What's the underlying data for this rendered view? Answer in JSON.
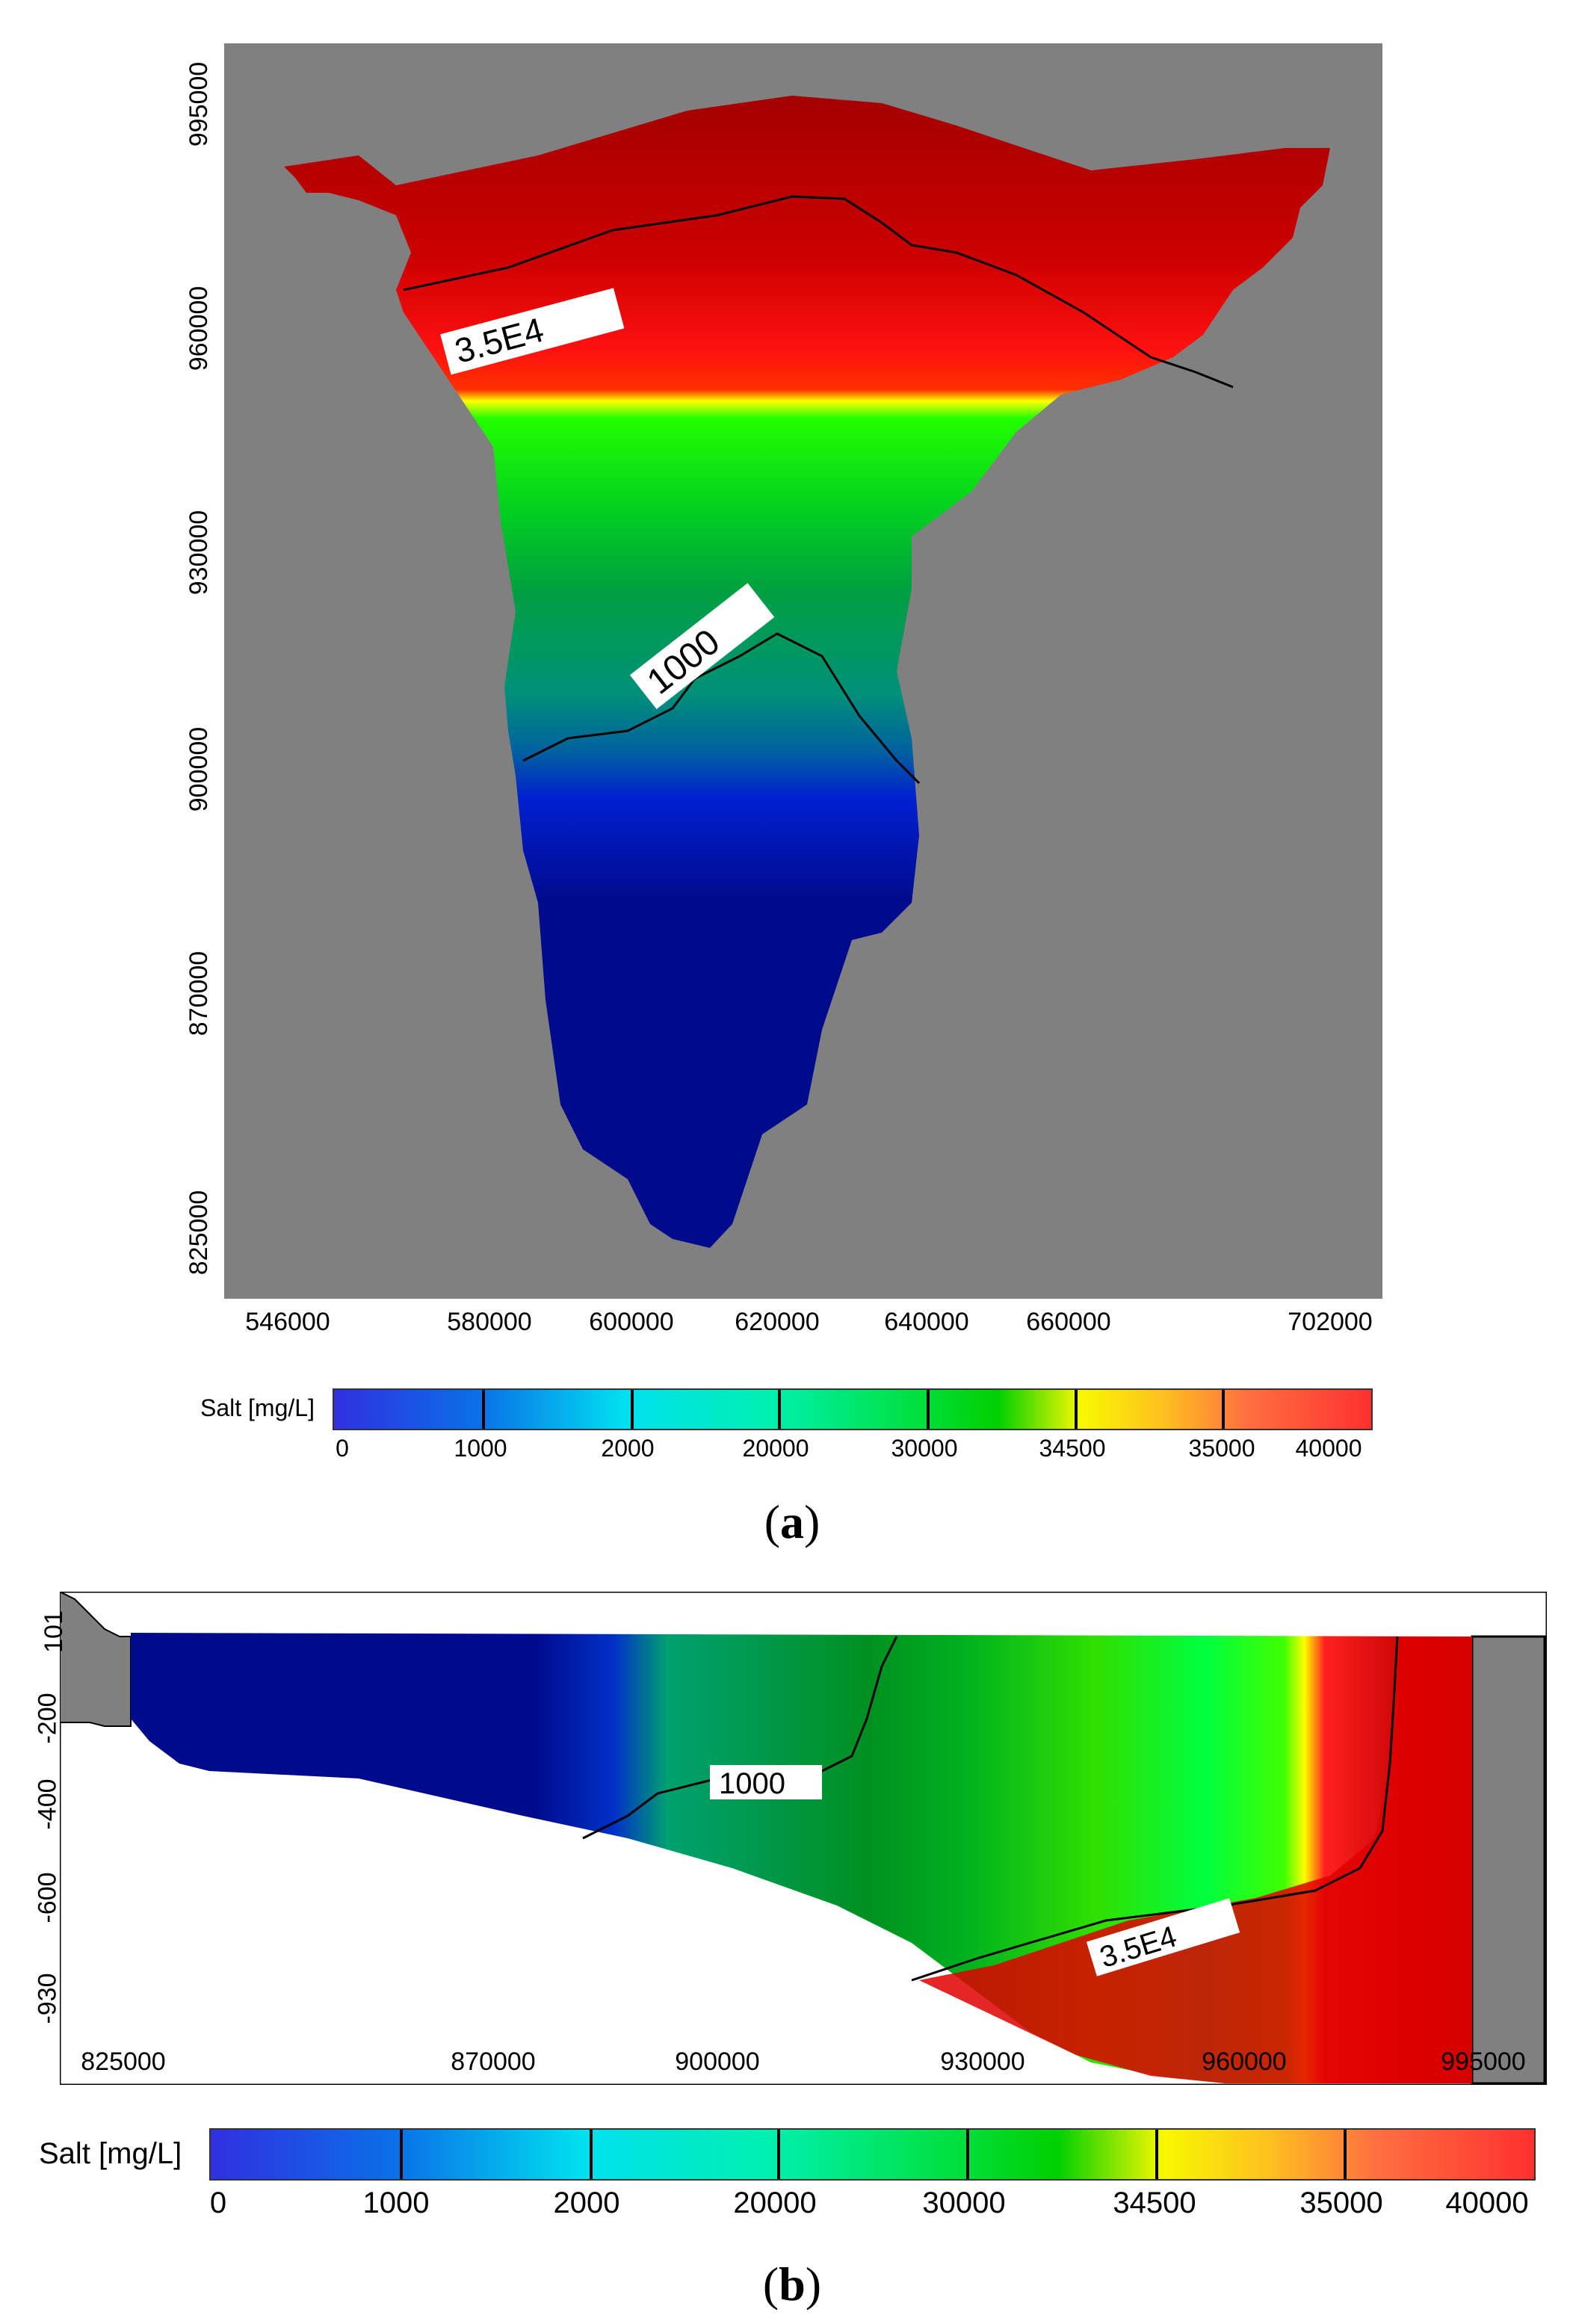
{
  "figure": {
    "panel_a_label": "a",
    "panel_b_label": "b"
  },
  "colors": {
    "background_gray": "#808080",
    "deep_blue": "#000a8c",
    "green": "#00b030",
    "bright_green": "#22ff00",
    "yellow": "#ffff00",
    "red": "#ff1010",
    "dark_red": "#a40000"
  },
  "chart_data": [
    {
      "type": "heatmap",
      "panel": "a",
      "x": {
        "ticks": [
          "546000",
          "580000",
          "600000",
          "620000",
          "640000",
          "660000",
          "702000"
        ],
        "range": [
          546000,
          702000
        ]
      },
      "y": {
        "ticks": [
          "995000",
          "960000",
          "930000",
          "900000",
          "870000",
          "825000"
        ],
        "range": [
          820000,
          1005000
        ]
      },
      "contours": [
        {
          "label": "3.5E4",
          "value": 35000
        },
        {
          "label": "1000",
          "value": 1000
        }
      ],
      "legend": {
        "title": "Salt [mg/L]",
        "breaks": [
          "0",
          "1000",
          "2000",
          "20000",
          "30000",
          "34500",
          "35000",
          "40000"
        ]
      }
    },
    {
      "type": "heatmap",
      "panel": "b",
      "x": {
        "ticks": [
          "825000",
          "870000",
          "900000",
          "930000",
          "960000",
          "995000"
        ],
        "range": [
          825000,
          995000
        ]
      },
      "y": {
        "ticks": [
          "101",
          "-200",
          "-400",
          "-600",
          "-930"
        ],
        "range": [
          -930,
          101
        ]
      },
      "contours": [
        {
          "label": "1000",
          "value": 1000
        },
        {
          "label": "3.5E4",
          "value": 35000
        }
      ],
      "legend": {
        "title": "Salt [mg/L]",
        "breaks": [
          "0",
          "1000",
          "2000",
          "20000",
          "30000",
          "34500",
          "35000",
          "40000"
        ]
      }
    }
  ]
}
